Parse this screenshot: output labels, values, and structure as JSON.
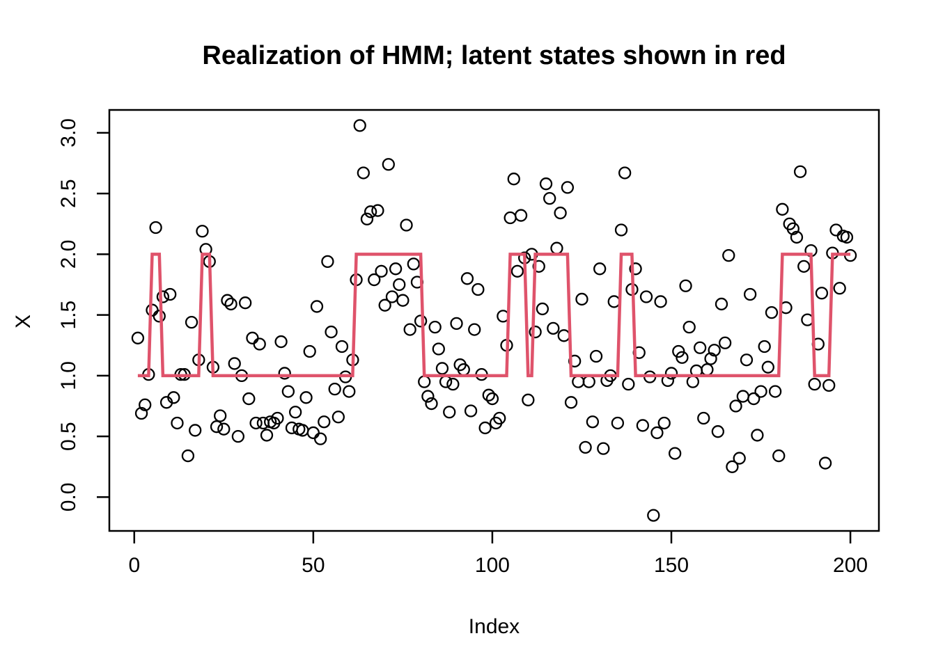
{
  "page": {
    "background": "#ffffff"
  },
  "chart_data": {
    "type": "scatter",
    "title": "Realization of HMM; latent states shown in red",
    "xlabel": "Index",
    "ylabel": "X",
    "x_ticks": [
      0,
      50,
      100,
      150,
      200
    ],
    "y_tick_labels": [
      "0.0",
      "0.5",
      "1.0",
      "1.5",
      "2.0",
      "2.5",
      "3.0"
    ],
    "y_tick_values": [
      0.0,
      0.5,
      1.0,
      1.5,
      2.0,
      2.5,
      3.0
    ],
    "xlim": [
      -6.96,
      207.96
    ],
    "ylim": [
      -0.2784,
      3.1884
    ],
    "grid": false,
    "legend": "none",
    "colors": {
      "points": "#000000",
      "latent_line": "#DF536B",
      "axis": "#000000"
    },
    "series": [
      {
        "name": "observations-X",
        "type": "scatter",
        "marker": "open-circle",
        "x_start": 1,
        "values": [
          1.31,
          0.69,
          0.76,
          1.01,
          1.54,
          2.22,
          1.49,
          1.65,
          0.78,
          1.67,
          0.82,
          0.61,
          1.01,
          1.01,
          0.34,
          1.44,
          0.55,
          1.13,
          2.19,
          2.04,
          1.94,
          1.07,
          0.58,
          0.67,
          0.56,
          1.62,
          1.59,
          1.1,
          0.5,
          1.0,
          1.6,
          0.81,
          1.31,
          0.61,
          1.26,
          0.61,
          0.51,
          0.62,
          0.61,
          0.65,
          1.28,
          1.02,
          0.87,
          0.57,
          0.7,
          0.56,
          0.55,
          0.82,
          1.2,
          0.53,
          1.57,
          0.48,
          0.62,
          1.94,
          1.36,
          0.89,
          0.66,
          1.24,
          0.99,
          0.87,
          1.13,
          1.79,
          3.06,
          2.67,
          2.29,
          2.35,
          1.79,
          2.36,
          1.86,
          1.58,
          2.74,
          1.65,
          1.88,
          1.75,
          1.62,
          2.24,
          1.38,
          1.92,
          1.77,
          1.45,
          0.95,
          0.83,
          0.77,
          1.4,
          1.22,
          1.06,
          0.95,
          0.7,
          0.93,
          1.43,
          1.09,
          1.05,
          1.8,
          0.71,
          1.38,
          1.71,
          1.01,
          0.57,
          0.84,
          0.81,
          0.61,
          0.65,
          1.49,
          1.25,
          2.3,
          2.62,
          1.86,
          2.32,
          1.97,
          0.8,
          2.0,
          1.36,
          1.9,
          1.55,
          2.58,
          2.46,
          1.39,
          2.05,
          2.34,
          1.33,
          2.55,
          0.78,
          1.12,
          0.95,
          1.63,
          0.41,
          0.95,
          0.62,
          1.16,
          1.88,
          0.4,
          0.96,
          1.0,
          1.61,
          0.61,
          2.2,
          2.67,
          0.93,
          1.71,
          1.88,
          1.19,
          0.59,
          1.65,
          0.99,
          -0.15,
          0.53,
          1.61,
          0.61,
          0.96,
          1.02,
          0.36,
          1.2,
          1.15,
          1.74,
          1.4,
          0.95,
          1.04,
          1.23,
          0.65,
          1.05,
          1.14,
          1.21,
          0.54,
          1.59,
          1.27,
          1.99,
          0.25,
          0.75,
          0.32,
          0.83,
          1.13,
          1.67,
          0.81,
          0.51,
          0.87,
          1.24,
          1.07,
          1.52,
          0.87,
          0.34,
          2.37,
          1.56,
          2.25,
          2.21,
          2.14,
          2.68,
          1.9,
          1.46,
          2.03,
          0.93,
          1.26,
          1.68,
          0.28,
          0.92,
          2.01,
          2.2,
          1.72,
          2.15,
          2.14,
          1.99
        ]
      },
      {
        "name": "latent-states",
        "type": "step-line",
        "segments": [
          {
            "from": 1,
            "to": 4,
            "state": 1
          },
          {
            "from": 5,
            "to": 7,
            "state": 2
          },
          {
            "from": 8,
            "to": 18,
            "state": 1
          },
          {
            "from": 19,
            "to": 21,
            "state": 2
          },
          {
            "from": 22,
            "to": 61,
            "state": 1
          },
          {
            "from": 62,
            "to": 80,
            "state": 2
          },
          {
            "from": 81,
            "to": 104,
            "state": 1
          },
          {
            "from": 105,
            "to": 109,
            "state": 2
          },
          {
            "from": 110,
            "to": 111,
            "state": 1
          },
          {
            "from": 112,
            "to": 121,
            "state": 2
          },
          {
            "from": 122,
            "to": 135,
            "state": 1
          },
          {
            "from": 136,
            "to": 139,
            "state": 2
          },
          {
            "from": 140,
            "to": 180,
            "state": 1
          },
          {
            "from": 181,
            "to": 189,
            "state": 2
          },
          {
            "from": 190,
            "to": 194,
            "state": 1
          },
          {
            "from": 195,
            "to": 200,
            "state": 2
          }
        ]
      }
    ]
  }
}
